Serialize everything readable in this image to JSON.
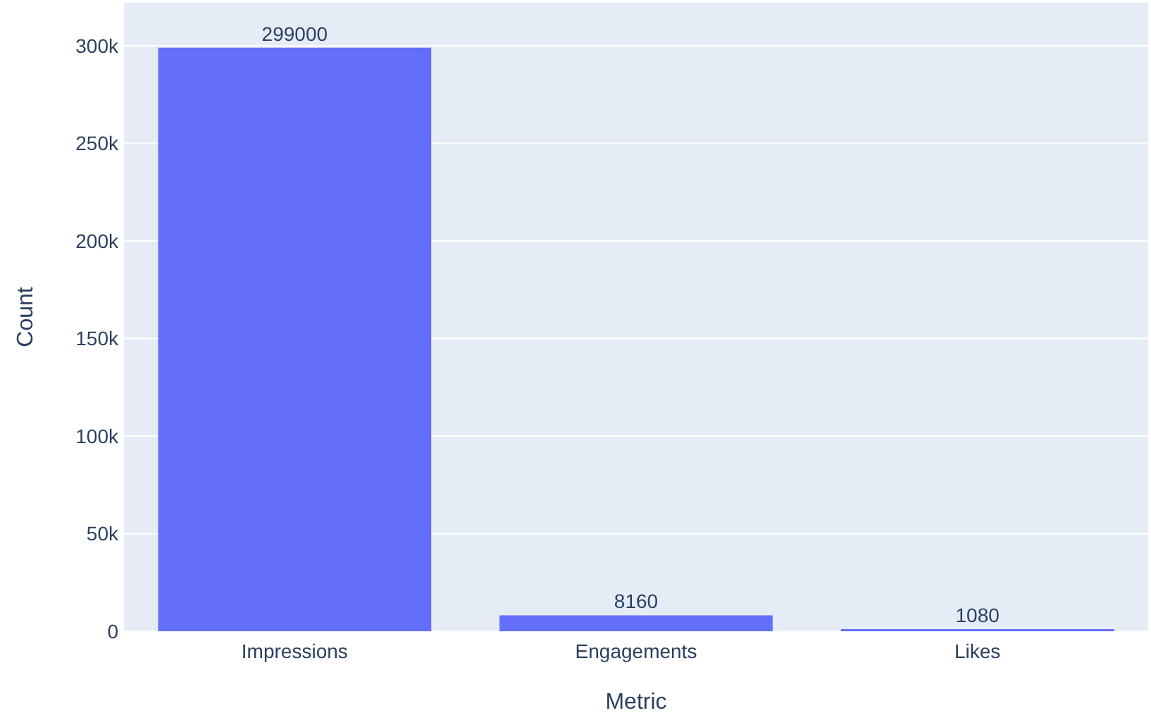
{
  "chart_data": {
    "type": "bar",
    "xlabel": "Metric",
    "ylabel": "Count",
    "categories": [
      "Impressions",
      "Engagements",
      "Likes"
    ],
    "values": [
      299000,
      8160,
      1080
    ],
    "color": "#636efa",
    "ylim": [
      0,
      322000
    ],
    "yticks": [
      0,
      {
        "value": 50000,
        "label": "50k"
      },
      {
        "value": 100000,
        "label": "100k"
      },
      {
        "value": 150000,
        "label": "150k"
      },
      {
        "value": 200000,
        "label": "200k"
      },
      {
        "value": 250000,
        "label": "250k"
      },
      {
        "value": 300000,
        "label": "300k"
      }
    ],
    "grid": "y",
    "data_labels": true
  }
}
